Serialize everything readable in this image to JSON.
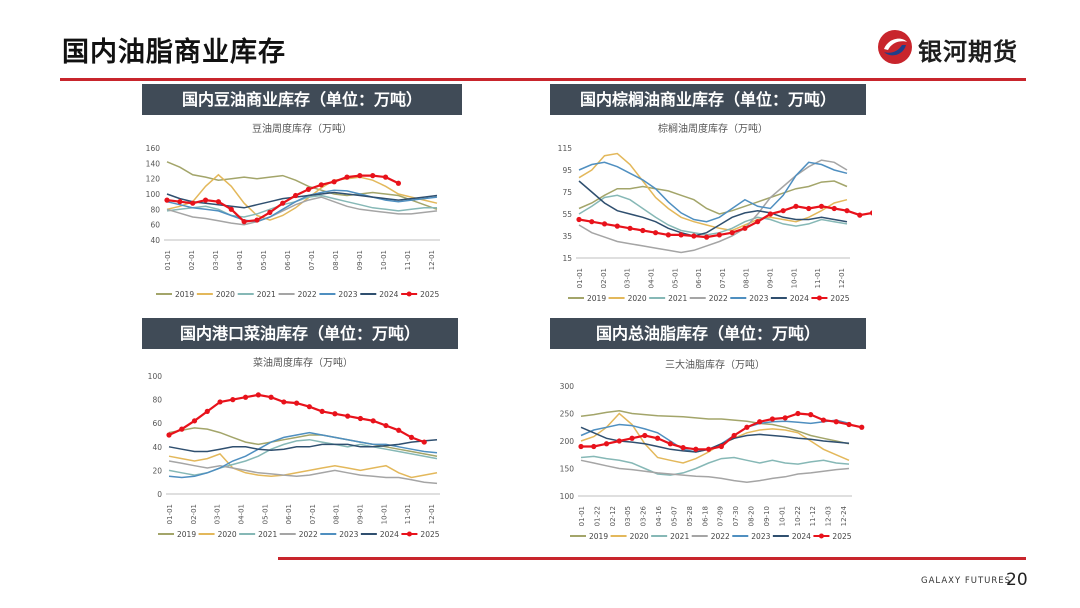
{
  "page": {
    "title": "国内油脂商业库存",
    "brand_cn": "银河期货",
    "brand_en": "GALAXY FUTURES",
    "page_number": "20"
  },
  "colors": {
    "accent": "#c8252c",
    "header_bg": "#404b57"
  },
  "legend_years": [
    "2019",
    "2020",
    "2021",
    "2022",
    "2023",
    "2024",
    "2025"
  ],
  "series_colors": {
    "2019": "#a3a56a",
    "2020": "#e3b85b",
    "2021": "#86b8b6",
    "2022": "#a5a5a5",
    "2023": "#4f8fc0",
    "2024": "#2f4f6f",
    "2025": "#e8121b"
  },
  "panels": [
    {
      "header": "国内豆油商业库存（单位：万吨）"
    },
    {
      "header": "国内棕榈油商业库存（单位：万吨）"
    },
    {
      "header": "国内港口菜油库存（单位：万吨）"
    },
    {
      "header": "国内总油脂库存（单位：万吨）"
    }
  ],
  "chart_data": [
    {
      "type": "line",
      "title": "豆油周度库存（万吨）",
      "ylim": [
        40,
        160
      ],
      "yticks": [
        40,
        60,
        80,
        100,
        120,
        140,
        160
      ],
      "xticks": [
        "01-01",
        "02-01",
        "03-01",
        "04-01",
        "05-01",
        "06-01",
        "07-01",
        "08-01",
        "09-01",
        "10-01",
        "11-01",
        "12-01"
      ],
      "series": [
        {
          "name": "2019",
          "values": [
            142,
            135,
            125,
            122,
            118,
            120,
            122,
            120,
            122,
            124,
            118,
            110,
            105,
            100,
            98,
            100,
            102,
            100,
            98,
            92,
            86,
            80
          ]
        },
        {
          "name": "2020",
          "values": [
            80,
            84,
            90,
            110,
            125,
            110,
            88,
            72,
            66,
            72,
            82,
            95,
            108,
            118,
            120,
            122,
            118,
            110,
            100,
            96,
            92,
            88
          ]
        },
        {
          "name": "2021",
          "values": [
            78,
            80,
            82,
            84,
            80,
            72,
            70,
            74,
            80,
            86,
            90,
            96,
            98,
            94,
            90,
            86,
            82,
            80,
            78,
            80,
            82,
            82
          ]
        },
        {
          "name": "2022",
          "values": [
            80,
            75,
            70,
            68,
            65,
            62,
            60,
            64,
            70,
            78,
            86,
            92,
            96,
            90,
            84,
            80,
            78,
            76,
            74,
            74,
            76,
            78
          ]
        },
        {
          "name": "2023",
          "values": [
            90,
            86,
            82,
            80,
            78,
            72,
            66,
            64,
            70,
            80,
            90,
            98,
            102,
            105,
            104,
            100,
            96,
            92,
            90,
            92,
            94,
            96
          ]
        },
        {
          "name": "2024",
          "values": [
            100,
            94,
            90,
            88,
            86,
            84,
            82,
            86,
            90,
            94,
            96,
            98,
            100,
            102,
            100,
            98,
            96,
            94,
            92,
            94,
            96,
            98
          ]
        },
        {
          "name": "2025",
          "values": [
            92,
            90,
            88,
            92,
            90,
            80,
            64,
            66,
            76,
            88,
            98,
            106,
            112,
            116,
            122,
            124,
            124,
            122,
            114
          ]
        }
      ]
    },
    {
      "type": "line",
      "title": "棕榈油周度库存（万吨）",
      "ylim": [
        15,
        115
      ],
      "yticks": [
        15,
        35,
        55,
        75,
        95,
        115
      ],
      "xticks": [
        "01-01",
        "02-01",
        "03-01",
        "04-01",
        "05-01",
        "06-01",
        "07-01",
        "08-01",
        "09-01",
        "10-01",
        "11-01",
        "12-01"
      ],
      "series": [
        {
          "name": "2019",
          "values": [
            60,
            65,
            72,
            78,
            78,
            80,
            78,
            76,
            72,
            68,
            60,
            55,
            58,
            62,
            66,
            70,
            74,
            78,
            80,
            84,
            85,
            80
          ]
        },
        {
          "name": "2020",
          "values": [
            88,
            95,
            108,
            110,
            100,
            85,
            70,
            60,
            52,
            48,
            45,
            42,
            40,
            45,
            50,
            52,
            50,
            48,
            52,
            58,
            65,
            68
          ]
        },
        {
          "name": "2021",
          "values": [
            55,
            62,
            70,
            72,
            68,
            60,
            52,
            45,
            40,
            38,
            36,
            38,
            42,
            48,
            52,
            50,
            46,
            44,
            46,
            50,
            48,
            46
          ]
        },
        {
          "name": "2022",
          "values": [
            45,
            38,
            34,
            30,
            28,
            26,
            24,
            22,
            20,
            22,
            26,
            30,
            35,
            42,
            55,
            70,
            80,
            90,
            98,
            104,
            102,
            95
          ]
        },
        {
          "name": "2023",
          "values": [
            95,
            100,
            102,
            98,
            92,
            86,
            78,
            66,
            56,
            50,
            48,
            52,
            60,
            68,
            62,
            60,
            72,
            90,
            102,
            100,
            95,
            92
          ]
        },
        {
          "name": "2024",
          "values": [
            85,
            75,
            65,
            58,
            55,
            52,
            48,
            42,
            38,
            35,
            38,
            45,
            52,
            56,
            58,
            56,
            52,
            50,
            50,
            52,
            50,
            48
          ]
        },
        {
          "name": "2025",
          "values": [
            50,
            48,
            46,
            44,
            42,
            40,
            38,
            36,
            36,
            35,
            34,
            36,
            38,
            42,
            48,
            55,
            58,
            62,
            60,
            62,
            60,
            58,
            54,
            56,
            58,
            62
          ]
        }
      ]
    },
    {
      "type": "line",
      "title": "菜油周度库存（万吨）",
      "ylim": [
        0,
        100
      ],
      "yticks": [
        0,
        20,
        40,
        60,
        80,
        100
      ],
      "xticks": [
        "01-01",
        "02-01",
        "03-01",
        "04-01",
        "05-01",
        "06-01",
        "07-01",
        "08-01",
        "09-01",
        "10-01",
        "11-01",
        "12-01"
      ],
      "series": [
        {
          "name": "2019",
          "values": [
            52,
            54,
            56,
            55,
            52,
            48,
            44,
            42,
            44,
            46,
            48,
            50,
            50,
            48,
            46,
            44,
            42,
            40,
            38,
            36,
            34,
            32
          ]
        },
        {
          "name": "2020",
          "values": [
            32,
            30,
            28,
            30,
            34,
            22,
            18,
            16,
            15,
            16,
            18,
            20,
            22,
            24,
            22,
            20,
            22,
            24,
            18,
            14,
            16,
            18
          ]
        },
        {
          "name": "2021",
          "values": [
            20,
            18,
            16,
            18,
            22,
            25,
            28,
            32,
            38,
            42,
            45,
            46,
            44,
            42,
            40,
            42,
            40,
            38,
            36,
            34,
            32,
            30
          ]
        },
        {
          "name": "2022",
          "values": [
            28,
            26,
            24,
            22,
            24,
            22,
            20,
            18,
            17,
            16,
            15,
            16,
            18,
            20,
            18,
            16,
            15,
            14,
            14,
            12,
            10,
            9
          ]
        },
        {
          "name": "2023",
          "values": [
            15,
            14,
            15,
            18,
            22,
            28,
            32,
            38,
            44,
            48,
            50,
            52,
            50,
            48,
            46,
            44,
            42,
            42,
            40,
            38,
            36,
            35
          ]
        },
        {
          "name": "2024",
          "values": [
            40,
            38,
            36,
            36,
            38,
            40,
            40,
            38,
            37,
            38,
            40,
            40,
            42,
            42,
            42,
            40,
            40,
            41,
            42,
            44,
            45,
            46
          ]
        },
        {
          "name": "2025",
          "values": [
            50,
            55,
            62,
            70,
            78,
            80,
            82,
            84,
            82,
            78,
            77,
            74,
            70,
            68,
            66,
            64,
            62,
            58,
            54,
            48,
            44
          ]
        }
      ]
    },
    {
      "type": "line",
      "title": "三大油脂库存（万吨）",
      "ylim": [
        100,
        300
      ],
      "yticks": [
        100,
        150,
        200,
        250,
        300
      ],
      "xticks": [
        "01-01",
        "01-22",
        "02-12",
        "03-05",
        "03-26",
        "04-16",
        "05-07",
        "05-28",
        "06-18",
        "07-09",
        "07-30",
        "08-20",
        "09-10",
        "10-01",
        "10-22",
        "11-12",
        "12-03",
        "12-24"
      ],
      "series": [
        {
          "name": "2019",
          "values": [
            245,
            248,
            252,
            255,
            250,
            248,
            246,
            245,
            244,
            242,
            240,
            240,
            238,
            236,
            232,
            230,
            225,
            218,
            210,
            205,
            200,
            195
          ]
        },
        {
          "name": "2020",
          "values": [
            200,
            208,
            225,
            250,
            230,
            195,
            170,
            165,
            160,
            168,
            180,
            195,
            205,
            215,
            220,
            222,
            220,
            215,
            200,
            185,
            175,
            165
          ]
        },
        {
          "name": "2021",
          "values": [
            170,
            172,
            168,
            165,
            160,
            150,
            140,
            138,
            142,
            150,
            160,
            168,
            170,
            165,
            160,
            165,
            160,
            158,
            162,
            165,
            160,
            158
          ]
        },
        {
          "name": "2022",
          "values": [
            165,
            160,
            155,
            150,
            148,
            145,
            142,
            140,
            138,
            136,
            135,
            132,
            128,
            125,
            128,
            132,
            135,
            140,
            142,
            145,
            148,
            150
          ]
        },
        {
          "name": "2023",
          "values": [
            210,
            220,
            225,
            230,
            228,
            222,
            215,
            200,
            185,
            180,
            185,
            195,
            210,
            225,
            232,
            235,
            236,
            234,
            232,
            235,
            238,
            232
          ]
        },
        {
          "name": "2024",
          "values": [
            225,
            215,
            205,
            200,
            198,
            195,
            190,
            185,
            182,
            180,
            185,
            195,
            205,
            210,
            212,
            210,
            208,
            205,
            203,
            200,
            198,
            196
          ]
        },
        {
          "name": "2025",
          "values": [
            190,
            190,
            195,
            200,
            205,
            210,
            205,
            195,
            188,
            185,
            185,
            190,
            210,
            225,
            235,
            240,
            242,
            250,
            248,
            238,
            235,
            230,
            225
          ]
        }
      ]
    }
  ]
}
